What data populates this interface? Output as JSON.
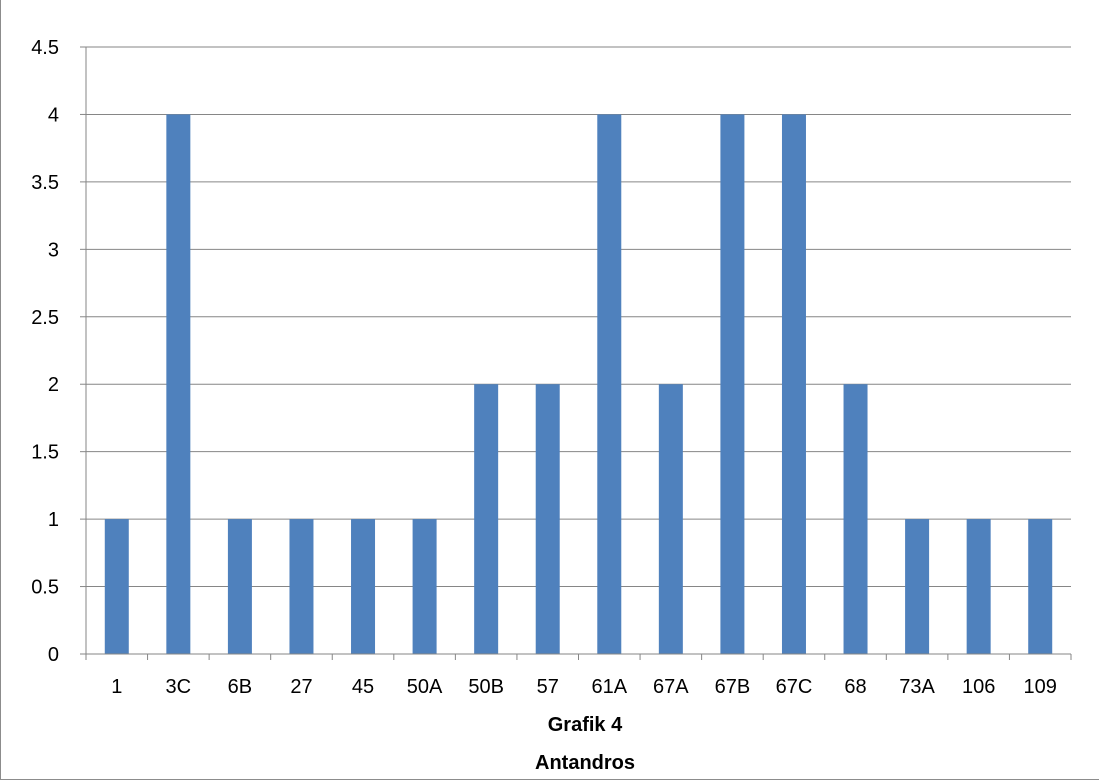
{
  "chart_data": {
    "type": "bar",
    "categories": [
      "1",
      "3C",
      "6B",
      "27",
      "45",
      "50A",
      "50B",
      "57",
      "61A",
      "67A",
      "67B",
      "67C",
      "68",
      "73A",
      "106",
      "109"
    ],
    "values": [
      1,
      4,
      1,
      1,
      1,
      1,
      2,
      2,
      4,
      2,
      4,
      4,
      2,
      1,
      1,
      1
    ],
    "ylim": [
      0,
      4.5
    ],
    "yticks": [
      "0",
      "0.5",
      "1",
      "1.5",
      "2",
      "2.5",
      "3",
      "3.5",
      "4",
      "4.5"
    ],
    "xlabel_line1": "Grafik 4",
    "xlabel_line2": "Antandros",
    "bar_color": "#4f81bd",
    "grid": true
  }
}
